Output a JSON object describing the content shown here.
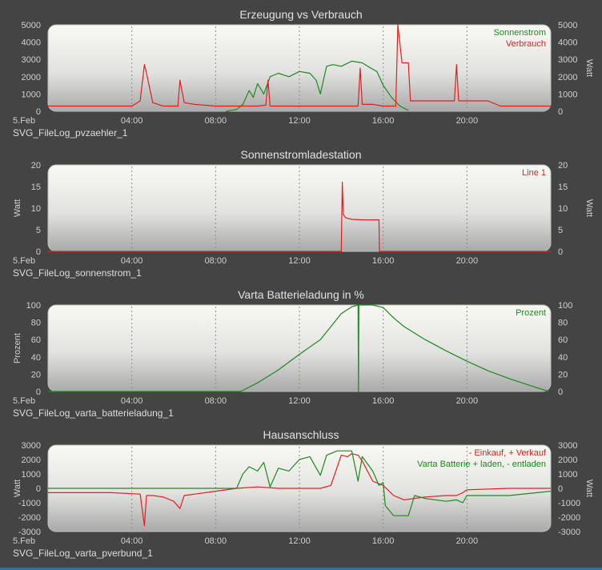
{
  "chart_data": [
    {
      "type": "line",
      "title": "Erzeugung vs Verbrauch",
      "caption": "SVG_FileLog_pvzaehler_1",
      "date_label": "5.Feb",
      "ylabel": "",
      "ylabel_right": "Watt",
      "ylim": [
        0,
        5000
      ],
      "yticks": [
        0,
        1000,
        2000,
        3000,
        4000,
        5000
      ],
      "xticks": [
        "04:00",
        "08:00",
        "12:00",
        "16:00",
        "20:00"
      ],
      "xlim": [
        0,
        24
      ],
      "series": [
        {
          "name": "Sonnenstrom",
          "color": "#1d8a1d",
          "x": [
            8.5,
            9.0,
            9.3,
            9.6,
            9.8,
            10.0,
            10.3,
            10.6,
            11.0,
            11.5,
            12.0,
            12.5,
            12.8,
            13.0,
            13.3,
            13.6,
            14.0,
            14.5,
            15.0,
            15.4,
            15.7,
            16.0,
            16.4,
            16.8,
            17.2
          ],
          "y": [
            0,
            100,
            400,
            1200,
            800,
            1600,
            1000,
            2000,
            2200,
            2000,
            2300,
            2200,
            1800,
            1000,
            2600,
            2700,
            2600,
            2900,
            2800,
            2500,
            2300,
            1500,
            800,
            300,
            50
          ]
        },
        {
          "name": "Verbrauch",
          "color": "#e02020",
          "x": [
            0,
            2.0,
            4.0,
            4.4,
            4.6,
            4.7,
            5.0,
            5.5,
            6.2,
            6.3,
            6.5,
            7.0,
            7.5,
            8.0,
            9.0,
            10.0,
            10.4,
            10.5,
            10.6,
            11.0,
            12.0,
            13.0,
            14.0,
            14.8,
            14.9,
            15.0,
            15.5,
            16.0,
            16.6,
            16.7,
            16.9,
            17.0,
            17.2,
            17.3,
            17.5,
            18.0,
            18.5,
            19.4,
            19.5,
            19.6,
            20.0,
            21.0,
            21.6,
            22.0,
            24.0
          ],
          "y": [
            300,
            300,
            300,
            600,
            2700,
            2200,
            500,
            300,
            300,
            1800,
            500,
            400,
            350,
            300,
            300,
            300,
            350,
            1800,
            300,
            300,
            300,
            300,
            300,
            300,
            2500,
            400,
            400,
            300,
            300,
            5000,
            2800,
            2800,
            2800,
            600,
            600,
            600,
            600,
            600,
            2700,
            600,
            600,
            600,
            300,
            300,
            300
          ]
        }
      ]
    },
    {
      "type": "line",
      "title": "Sonnenstromladestation",
      "caption": "SVG_FileLog_sonnenstrom_1",
      "date_label": "5.Feb",
      "ylabel": "Watt",
      "ylabel_right": "Watt",
      "ylim": [
        0,
        20
      ],
      "yticks": [
        0,
        5,
        10,
        15,
        20
      ],
      "xticks": [
        "04:00",
        "08:00",
        "12:00",
        "16:00",
        "20:00"
      ],
      "xlim": [
        0,
        24
      ],
      "series": [
        {
          "name": "Line 1",
          "color": "#e02020",
          "x": [
            0,
            14.0,
            14.05,
            14.1,
            14.2,
            14.5,
            15.0,
            15.5,
            15.8,
            15.82,
            24.0
          ],
          "y": [
            0,
            0,
            16,
            8.5,
            7.8,
            7.4,
            7.3,
            7.3,
            7.3,
            0,
            0
          ]
        }
      ]
    },
    {
      "type": "line",
      "title": "Varta Batterieladung in %",
      "caption": "SVG_FileLog_varta_batterieladung_1",
      "date_label": "5.Feb",
      "ylabel": "Prozent",
      "ylabel_right": "",
      "ylim": [
        0,
        100
      ],
      "yticks": [
        0,
        20,
        40,
        60,
        80,
        100
      ],
      "xticks": [
        "04:00",
        "08:00",
        "12:00",
        "16:00",
        "20:00"
      ],
      "xlim": [
        0,
        24
      ],
      "series": [
        {
          "name": "Prozent",
          "color": "#1d8a1d",
          "x": [
            0,
            9.2,
            10.0,
            11.0,
            12.0,
            13.0,
            13.5,
            14.0,
            14.5,
            14.8,
            14.82,
            14.84,
            15.0,
            15.5,
            16.0,
            16.5,
            17.0,
            18.0,
            19.0,
            20.0,
            21.0,
            22.0,
            23.0,
            23.9
          ],
          "y": [
            0,
            0,
            10,
            25,
            43,
            60,
            75,
            90,
            98,
            100,
            0,
            100,
            100,
            100,
            97,
            85,
            75,
            60,
            47,
            35,
            24,
            15,
            7,
            0
          ]
        }
      ]
    },
    {
      "type": "line",
      "title": "Hausanschluss",
      "caption": "SVG_FileLog_varta_pverbund_1",
      "date_label": "5.Feb",
      "ylabel": "Watt",
      "ylabel_right": "Watt",
      "ylim": [
        -3000,
        3000
      ],
      "yticks": [
        -3000,
        -2000,
        -1000,
        0,
        1000,
        2000,
        3000
      ],
      "xticks": [
        "04:00",
        "08:00",
        "12:00",
        "16:00",
        "20:00"
      ],
      "xlim": [
        0,
        24
      ],
      "series": [
        {
          "name": "- Einkauf, + Verkauf",
          "color": "#e02020",
          "x": [
            0,
            3.0,
            4.4,
            4.6,
            4.7,
            4.8,
            5.0,
            5.5,
            6.0,
            6.3,
            6.5,
            7.0,
            8.0,
            9.0,
            10.0,
            11.0,
            12.0,
            13.0,
            13.5,
            14.0,
            14.3,
            14.5,
            14.8,
            15.0,
            15.5,
            16.0,
            16.5,
            17.0,
            17.5,
            18.0,
            19.0,
            19.5,
            19.8,
            20.0,
            22.0,
            24.0
          ],
          "y": [
            -300,
            -300,
            -400,
            -2600,
            -500,
            -500,
            -500,
            -600,
            -900,
            -1400,
            -500,
            -400,
            -200,
            0,
            100,
            0,
            0,
            0,
            200,
            2300,
            2200,
            2400,
            2300,
            1900,
            500,
            200,
            -500,
            -800,
            -700,
            -600,
            -500,
            -500,
            -300,
            -100,
            0,
            0
          ]
        },
        {
          "name": "Varta Batterie + laden, - entladen",
          "color": "#1d8a1d",
          "x": [
            0,
            8.0,
            9.0,
            9.3,
            9.6,
            10.0,
            10.3,
            10.6,
            11.0,
            11.5,
            12.0,
            12.5,
            13.0,
            13.3,
            13.8,
            14.5,
            14.8,
            15.0,
            15.5,
            15.8,
            16.0,
            16.1,
            16.5,
            17.0,
            17.2,
            17.5,
            18.0,
            19.0,
            19.5,
            19.8,
            20.0,
            22.0,
            24.0
          ],
          "y": [
            0,
            0,
            0,
            1000,
            1500,
            1200,
            1800,
            100,
            1400,
            1200,
            2000,
            2200,
            900,
            2300,
            2600,
            2600,
            500,
            2200,
            1200,
            200,
            400,
            -1200,
            -1900,
            -1900,
            -1900,
            -500,
            -700,
            -900,
            -800,
            -1000,
            -500,
            -500,
            -200
          ]
        }
      ]
    }
  ]
}
